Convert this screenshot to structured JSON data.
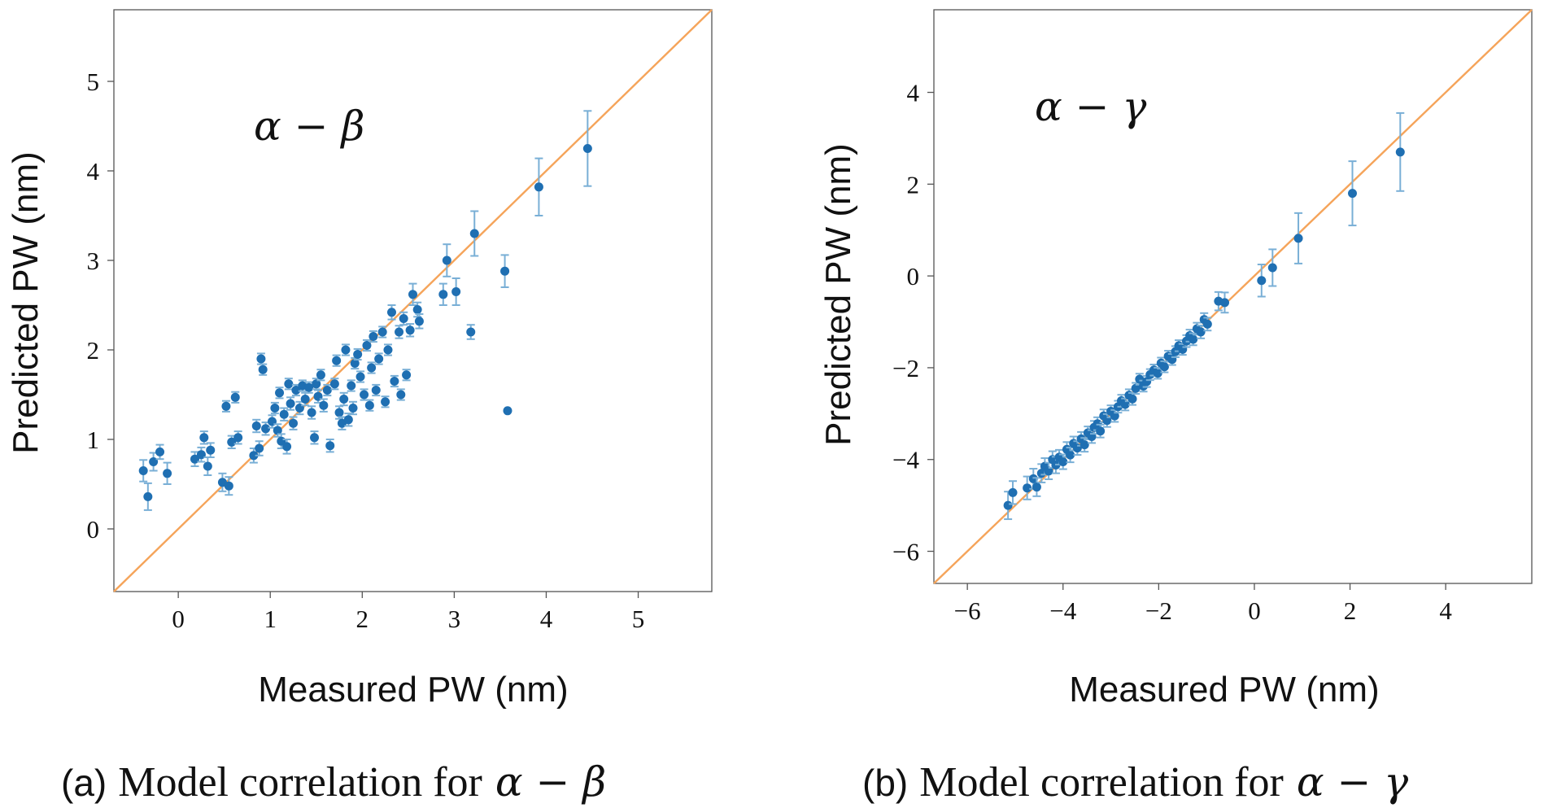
{
  "chart_data": [
    {
      "type": "scatter",
      "panel_tag": "(a)",
      "caption": "Model correlation for",
      "caption_math": "α − β",
      "annotation": "α − β",
      "xlabel": "Measured PW (nm)",
      "ylabel": "Predicted PW (nm)",
      "xlim": [
        -0.7,
        5.8
      ],
      "ylim": [
        -0.7,
        5.8
      ],
      "xticks": [
        0,
        1,
        2,
        3,
        4,
        5
      ],
      "yticks": [
        0,
        1,
        2,
        3,
        4,
        5
      ],
      "reference_line": "y = x",
      "colors": {
        "points": "#1f6fb2",
        "errorbars": "#79afd6",
        "reference_line": "#f5a45a"
      },
      "points": [
        {
          "x": -0.38,
          "y": 0.65,
          "err": 0.12
        },
        {
          "x": -0.33,
          "y": 0.36,
          "err": 0.15
        },
        {
          "x": -0.27,
          "y": 0.75,
          "err": 0.1
        },
        {
          "x": -0.2,
          "y": 0.86,
          "err": 0.08
        },
        {
          "x": -0.12,
          "y": 0.62,
          "err": 0.12
        },
        {
          "x": 0.18,
          "y": 0.78,
          "err": 0.08
        },
        {
          "x": 0.25,
          "y": 0.83,
          "err": 0.08
        },
        {
          "x": 0.28,
          "y": 1.02,
          "err": 0.07
        },
        {
          "x": 0.32,
          "y": 0.7,
          "err": 0.1
        },
        {
          "x": 0.35,
          "y": 0.88,
          "err": 0.08
        },
        {
          "x": 0.48,
          "y": 0.52,
          "err": 0.1
        },
        {
          "x": 0.52,
          "y": 1.37,
          "err": 0.06
        },
        {
          "x": 0.55,
          "y": 0.48,
          "err": 0.1
        },
        {
          "x": 0.58,
          "y": 0.97,
          "err": 0.07
        },
        {
          "x": 0.62,
          "y": 1.47,
          "err": 0.06
        },
        {
          "x": 0.65,
          "y": 1.02,
          "err": 0.07
        },
        {
          "x": 0.82,
          "y": 0.82,
          "err": 0.08
        },
        {
          "x": 0.85,
          "y": 1.15,
          "err": 0.07
        },
        {
          "x": 0.88,
          "y": 0.9,
          "err": 0.08
        },
        {
          "x": 0.9,
          "y": 1.9,
          "err": 0.06
        },
        {
          "x": 0.92,
          "y": 1.78,
          "err": 0.06
        },
        {
          "x": 0.95,
          "y": 1.12,
          "err": 0.07
        },
        {
          "x": 1.02,
          "y": 1.2,
          "err": 0.07
        },
        {
          "x": 1.05,
          "y": 1.35,
          "err": 0.06
        },
        {
          "x": 1.08,
          "y": 1.1,
          "err": 0.07
        },
        {
          "x": 1.1,
          "y": 1.52,
          "err": 0.06
        },
        {
          "x": 1.12,
          "y": 0.98,
          "err": 0.08
        },
        {
          "x": 1.15,
          "y": 1.28,
          "err": 0.07
        },
        {
          "x": 1.18,
          "y": 0.92,
          "err": 0.08
        },
        {
          "x": 1.2,
          "y": 1.62,
          "err": 0.06
        },
        {
          "x": 1.22,
          "y": 1.4,
          "err": 0.07
        },
        {
          "x": 1.25,
          "y": 1.18,
          "err": 0.07
        },
        {
          "x": 1.28,
          "y": 1.55,
          "err": 0.06
        },
        {
          "x": 1.32,
          "y": 1.35,
          "err": 0.07
        },
        {
          "x": 1.35,
          "y": 1.6,
          "err": 0.06
        },
        {
          "x": 1.38,
          "y": 1.45,
          "err": 0.07
        },
        {
          "x": 1.42,
          "y": 1.58,
          "err": 0.06
        },
        {
          "x": 1.45,
          "y": 1.3,
          "err": 0.07
        },
        {
          "x": 1.48,
          "y": 1.02,
          "err": 0.07
        },
        {
          "x": 1.5,
          "y": 1.62,
          "err": 0.06
        },
        {
          "x": 1.52,
          "y": 1.48,
          "err": 0.07
        },
        {
          "x": 1.55,
          "y": 1.72,
          "err": 0.06
        },
        {
          "x": 1.58,
          "y": 1.38,
          "err": 0.07
        },
        {
          "x": 1.62,
          "y": 1.55,
          "err": 0.06
        },
        {
          "x": 1.65,
          "y": 0.93,
          "err": 0.07
        },
        {
          "x": 1.7,
          "y": 1.62,
          "err": 0.06
        },
        {
          "x": 1.72,
          "y": 1.88,
          "err": 0.06
        },
        {
          "x": 1.75,
          "y": 1.3,
          "err": 0.07
        },
        {
          "x": 1.78,
          "y": 1.18,
          "err": 0.07
        },
        {
          "x": 1.8,
          "y": 1.45,
          "err": 0.07
        },
        {
          "x": 1.82,
          "y": 2.0,
          "err": 0.06
        },
        {
          "x": 1.85,
          "y": 1.22,
          "err": 0.07
        },
        {
          "x": 1.88,
          "y": 1.6,
          "err": 0.06
        },
        {
          "x": 1.9,
          "y": 1.35,
          "err": 0.07
        },
        {
          "x": 1.92,
          "y": 1.85,
          "err": 0.06
        },
        {
          "x": 1.95,
          "y": 1.95,
          "err": 0.06
        },
        {
          "x": 1.98,
          "y": 1.7,
          "err": 0.06
        },
        {
          "x": 2.02,
          "y": 1.5,
          "err": 0.06
        },
        {
          "x": 2.05,
          "y": 2.05,
          "err": 0.06
        },
        {
          "x": 2.08,
          "y": 1.38,
          "err": 0.06
        },
        {
          "x": 2.1,
          "y": 1.8,
          "err": 0.06
        },
        {
          "x": 2.12,
          "y": 2.15,
          "err": 0.06
        },
        {
          "x": 2.15,
          "y": 1.55,
          "err": 0.06
        },
        {
          "x": 2.18,
          "y": 1.9,
          "err": 0.06
        },
        {
          "x": 2.22,
          "y": 2.2,
          "err": 0.06
        },
        {
          "x": 2.25,
          "y": 1.42,
          "err": 0.06
        },
        {
          "x": 2.28,
          "y": 2.0,
          "err": 0.06
        },
        {
          "x": 2.32,
          "y": 2.42,
          "err": 0.08
        },
        {
          "x": 2.35,
          "y": 1.65,
          "err": 0.06
        },
        {
          "x": 2.4,
          "y": 2.2,
          "err": 0.07
        },
        {
          "x": 2.42,
          "y": 1.5,
          "err": 0.06
        },
        {
          "x": 2.45,
          "y": 2.35,
          "err": 0.07
        },
        {
          "x": 2.48,
          "y": 1.72,
          "err": 0.06
        },
        {
          "x": 2.52,
          "y": 2.22,
          "err": 0.07
        },
        {
          "x": 2.55,
          "y": 2.62,
          "err": 0.12
        },
        {
          "x": 2.6,
          "y": 2.45,
          "err": 0.08
        },
        {
          "x": 2.62,
          "y": 2.32,
          "err": 0.08
        },
        {
          "x": 2.88,
          "y": 2.62,
          "err": 0.12
        },
        {
          "x": 2.92,
          "y": 3.0,
          "err": 0.18
        },
        {
          "x": 3.02,
          "y": 2.65,
          "err": 0.15
        },
        {
          "x": 3.18,
          "y": 2.2,
          "err": 0.08
        },
        {
          "x": 3.22,
          "y": 3.3,
          "err": 0.25
        },
        {
          "x": 3.55,
          "y": 2.88,
          "err": 0.18
        },
        {
          "x": 3.58,
          "y": 1.32,
          "err": 0.0
        },
        {
          "x": 3.92,
          "y": 3.82,
          "err": 0.32
        },
        {
          "x": 4.45,
          "y": 4.25,
          "err": 0.42
        }
      ]
    },
    {
      "type": "scatter",
      "panel_tag": "(b)",
      "caption": "Model correlation for",
      "caption_math": "α − γ",
      "annotation": "α − γ",
      "xlabel": "Measured PW (nm)",
      "ylabel": "Predicted PW (nm)",
      "xlim": [
        -6.7,
        5.8
      ],
      "ylim": [
        -6.7,
        5.8
      ],
      "xticks": [
        -6,
        -4,
        -2,
        0,
        2,
        4
      ],
      "yticks": [
        -6,
        -4,
        -2,
        0,
        2,
        4
      ],
      "xtick_labels": [
        "−6",
        "−4",
        "−2",
        "0",
        "2",
        "4"
      ],
      "ytick_labels": [
        "−6",
        "−4",
        "−2",
        "0",
        "2",
        "4"
      ],
      "reference_line": "y = x",
      "colors": {
        "points": "#1f6fb2",
        "errorbars": "#79afd6",
        "reference_line": "#f5a45a"
      },
      "points": [
        {
          "x": -5.15,
          "y": -5.0,
          "err": 0.3
        },
        {
          "x": -5.05,
          "y": -4.72,
          "err": 0.25
        },
        {
          "x": -4.75,
          "y": -4.62,
          "err": 0.25
        },
        {
          "x": -4.62,
          "y": -4.42,
          "err": 0.22
        },
        {
          "x": -4.55,
          "y": -4.6,
          "err": 0.2
        },
        {
          "x": -4.45,
          "y": -4.3,
          "err": 0.2
        },
        {
          "x": -4.38,
          "y": -4.15,
          "err": 0.18
        },
        {
          "x": -4.3,
          "y": -4.25,
          "err": 0.18
        },
        {
          "x": -4.22,
          "y": -4.0,
          "err": 0.18
        },
        {
          "x": -4.15,
          "y": -4.12,
          "err": 0.18
        },
        {
          "x": -4.08,
          "y": -3.95,
          "err": 0.16
        },
        {
          "x": -4.0,
          "y": -4.05,
          "err": 0.16
        },
        {
          "x": -3.92,
          "y": -3.78,
          "err": 0.16
        },
        {
          "x": -3.85,
          "y": -3.9,
          "err": 0.16
        },
        {
          "x": -3.78,
          "y": -3.65,
          "err": 0.15
        },
        {
          "x": -3.7,
          "y": -3.75,
          "err": 0.15
        },
        {
          "x": -3.62,
          "y": -3.55,
          "err": 0.15
        },
        {
          "x": -3.55,
          "y": -3.68,
          "err": 0.15
        },
        {
          "x": -3.48,
          "y": -3.42,
          "err": 0.14
        },
        {
          "x": -3.4,
          "y": -3.5,
          "err": 0.14
        },
        {
          "x": -3.35,
          "y": -3.3,
          "err": 0.14
        },
        {
          "x": -3.28,
          "y": -3.22,
          "err": 0.14
        },
        {
          "x": -3.22,
          "y": -3.38,
          "err": 0.14
        },
        {
          "x": -3.15,
          "y": -3.05,
          "err": 0.14
        },
        {
          "x": -3.08,
          "y": -3.15,
          "err": 0.14
        },
        {
          "x": -3.0,
          "y": -2.95,
          "err": 0.13
        },
        {
          "x": -2.92,
          "y": -3.05,
          "err": 0.13
        },
        {
          "x": -2.85,
          "y": -2.85,
          "err": 0.13
        },
        {
          "x": -2.78,
          "y": -2.72,
          "err": 0.13
        },
        {
          "x": -2.7,
          "y": -2.8,
          "err": 0.13
        },
        {
          "x": -2.62,
          "y": -2.6,
          "err": 0.13
        },
        {
          "x": -2.55,
          "y": -2.68,
          "err": 0.13
        },
        {
          "x": -2.48,
          "y": -2.45,
          "err": 0.12
        },
        {
          "x": -2.4,
          "y": -2.25,
          "err": 0.12
        },
        {
          "x": -2.32,
          "y": -2.4,
          "err": 0.12
        },
        {
          "x": -2.25,
          "y": -2.3,
          "err": 0.12
        },
        {
          "x": -2.18,
          "y": -2.15,
          "err": 0.12
        },
        {
          "x": -2.1,
          "y": -2.05,
          "err": 0.12
        },
        {
          "x": -2.02,
          "y": -2.12,
          "err": 0.12
        },
        {
          "x": -1.95,
          "y": -1.9,
          "err": 0.12
        },
        {
          "x": -1.88,
          "y": -1.98,
          "err": 0.12
        },
        {
          "x": -1.8,
          "y": -1.75,
          "err": 0.12
        },
        {
          "x": -1.72,
          "y": -1.82,
          "err": 0.12
        },
        {
          "x": -1.65,
          "y": -1.65,
          "err": 0.12
        },
        {
          "x": -1.58,
          "y": -1.52,
          "err": 0.12
        },
        {
          "x": -1.5,
          "y": -1.6,
          "err": 0.12
        },
        {
          "x": -1.42,
          "y": -1.42,
          "err": 0.13
        },
        {
          "x": -1.35,
          "y": -1.3,
          "err": 0.13
        },
        {
          "x": -1.28,
          "y": -1.38,
          "err": 0.13
        },
        {
          "x": -1.2,
          "y": -1.15,
          "err": 0.13
        },
        {
          "x": -1.12,
          "y": -1.22,
          "err": 0.14
        },
        {
          "x": -1.05,
          "y": -0.95,
          "err": 0.14
        },
        {
          "x": -0.98,
          "y": -1.05,
          "err": 0.14
        },
        {
          "x": -0.75,
          "y": -0.55,
          "err": 0.2
        },
        {
          "x": -0.62,
          "y": -0.58,
          "err": 0.22
        },
        {
          "x": 0.15,
          "y": -0.1,
          "err": 0.35
        },
        {
          "x": 0.38,
          "y": 0.18,
          "err": 0.4
        },
        {
          "x": 0.92,
          "y": 0.82,
          "err": 0.55
        },
        {
          "x": 2.05,
          "y": 1.8,
          "err": 0.7
        },
        {
          "x": 3.05,
          "y": 2.7,
          "err": 0.85
        }
      ]
    }
  ]
}
